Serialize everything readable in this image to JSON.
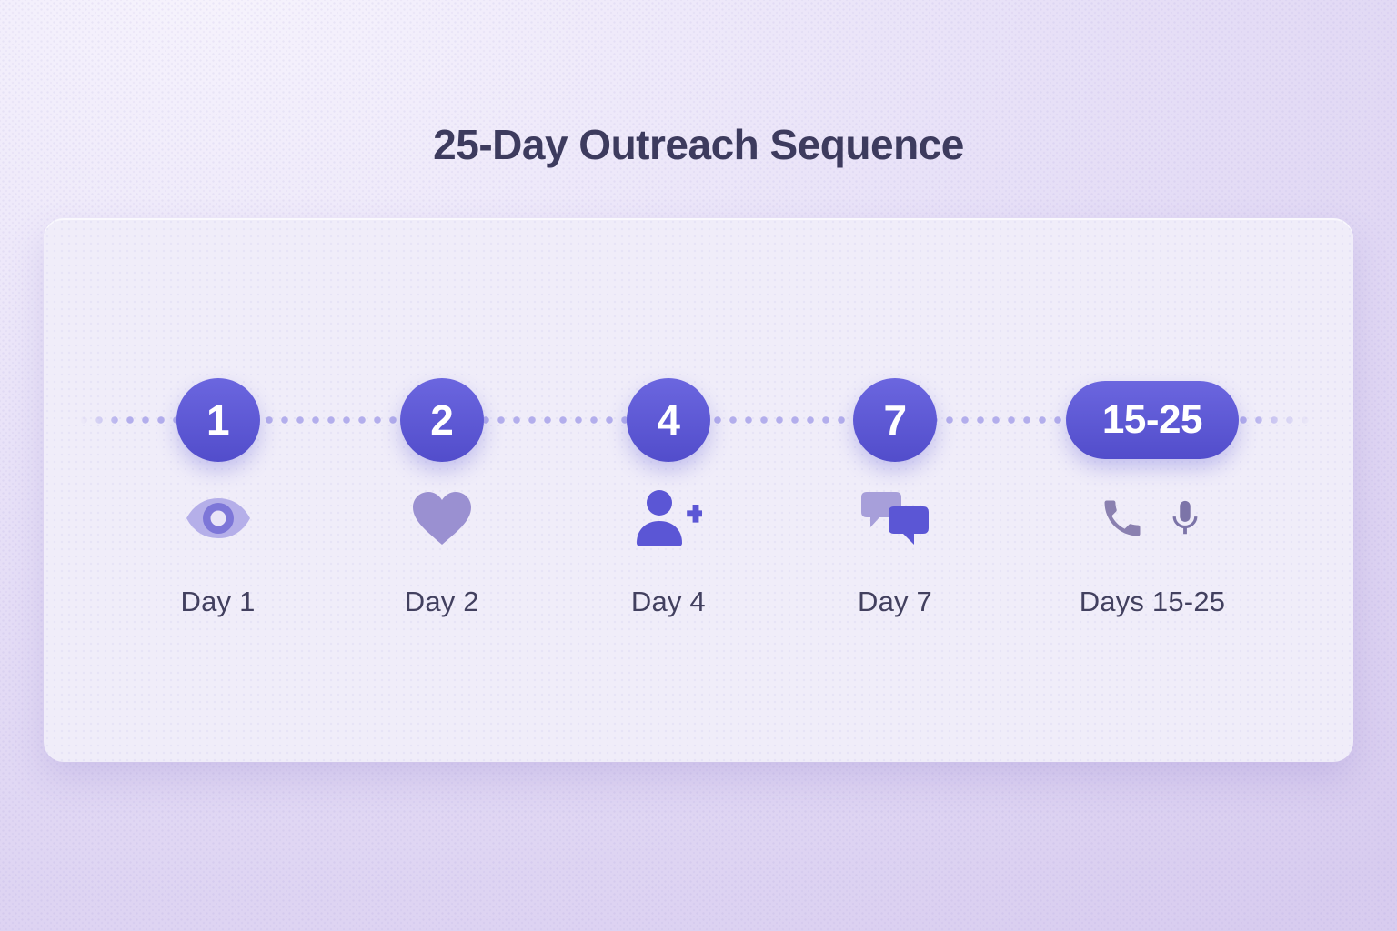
{
  "title": "25-Day Outreach Sequence",
  "timeline": {
    "milestones": [
      {
        "badge": "1",
        "label": "Day 1",
        "shape": "circle",
        "icons": [
          "eye-icon"
        ]
      },
      {
        "badge": "2",
        "label": "Day 2",
        "shape": "circle",
        "icons": [
          "heart-icon"
        ]
      },
      {
        "badge": "4",
        "label": "Day 4",
        "shape": "circle",
        "icons": [
          "person-add-icon"
        ]
      },
      {
        "badge": "7",
        "label": "Day 7",
        "shape": "circle",
        "icons": [
          "chat-bubbles-icon"
        ]
      },
      {
        "badge": "15-25",
        "label": "Days 15-25",
        "shape": "pill",
        "icons": [
          "phone-icon",
          "microphone-icon"
        ]
      }
    ]
  },
  "colors": {
    "accent": "#5b56d5",
    "accent_light": "#b3aeec",
    "title_text": "#3d3b5e",
    "label_text": "#42405f",
    "heart_icon": "#9a90d1",
    "chat_back_bubble": "#a79fda",
    "eye_outline": "#b5afe9",
    "eye_iris": "#7d76d8",
    "phone_icon": "#8a80b0",
    "microphone_icon": "#7c74a8",
    "card_bg": "#f0edf9",
    "page_bg_top": "#f7f4fd",
    "page_bg_bottom": "#d8ccef"
  }
}
